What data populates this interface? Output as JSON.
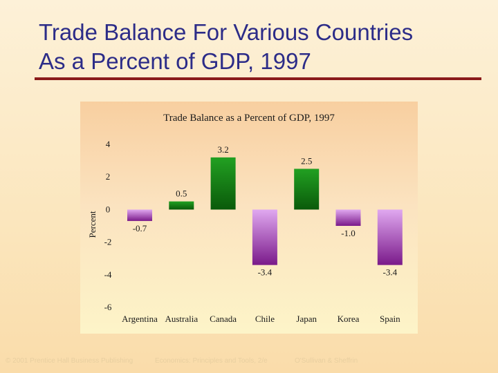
{
  "slide": {
    "title_line1": "Trade Balance For Various Countries",
    "title_line2": "As a Percent of GDP, 1997"
  },
  "colors": {
    "title_text": "#2c2c88",
    "title_rule": "#8a1a1a",
    "positive_bar_top": "#22a022",
    "positive_bar_bottom": "#0a5a0a",
    "negative_bar_top": "#e0a8f0",
    "negative_bar_bottom": "#7a1a8a"
  },
  "chart_data": {
    "type": "bar",
    "title": "Trade Balance as a Percent of GDP, 1997",
    "xlabel": "",
    "ylabel": "Percent",
    "ylim": [
      -6,
      4
    ],
    "yticks": [
      4,
      2,
      0,
      -2,
      -4,
      -6
    ],
    "grid": false,
    "categories": [
      "Argentina",
      "Australia",
      "Canada",
      "Chile",
      "Japan",
      "Korea",
      "Spain"
    ],
    "values": [
      -0.7,
      0.5,
      3.2,
      -3.4,
      2.5,
      -1.0,
      -3.4
    ],
    "value_labels": [
      "-0.7",
      "0.5",
      "3.2",
      "-3.4",
      "2.5",
      "-1.0",
      "-3.4"
    ]
  },
  "footer": {
    "copyright": "© 2001 Prentice Hall Business Publishing",
    "book": "Economics: Principles and Tools, 2/e",
    "authors": "O'Sullivan & Sheffrin"
  }
}
